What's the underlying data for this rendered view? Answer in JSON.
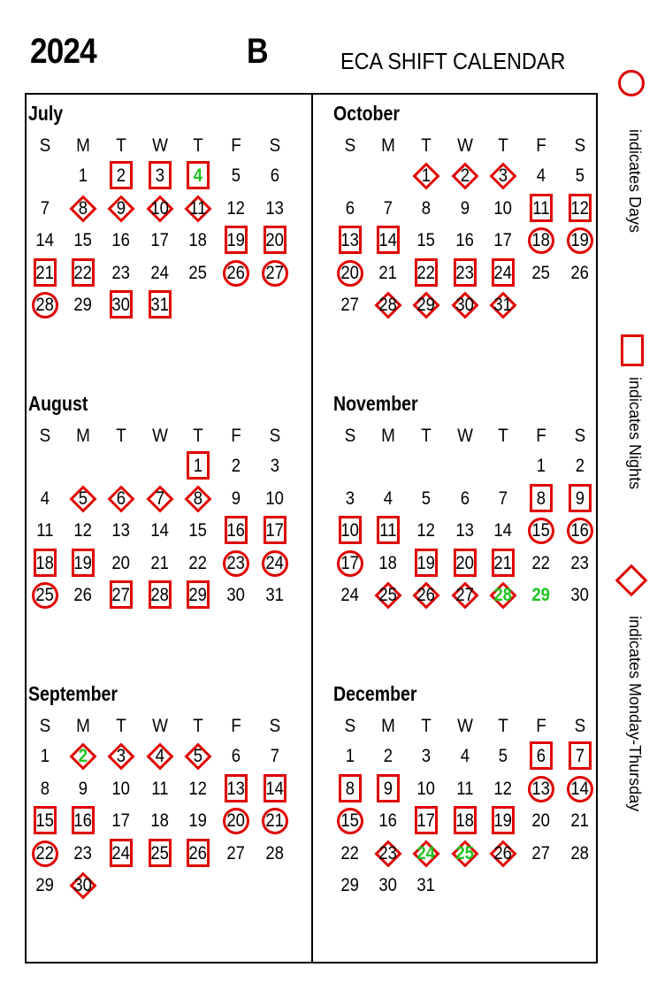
{
  "header": {
    "year": "2024",
    "shift": "B",
    "title": "ECA SHIFT CALENDAR"
  },
  "legend": {
    "days": "indicates Days",
    "nights": "indicates Nights",
    "monday_thursday": "indicates Monday-Thursday",
    "mark_color": "#e00000",
    "holiday_color": "#1fc21f"
  },
  "weekday_labels": [
    "S",
    "M",
    "T",
    "W",
    "T",
    "F",
    "S"
  ],
  "months": [
    {
      "name": "July",
      "start_weekday": 1,
      "days": 31,
      "marks": {
        "2": "square",
        "3": "square",
        "4": "square",
        "8": "diamond",
        "9": "diamond",
        "10": "diamond",
        "11": "diamond",
        "19": "square",
        "20": "square",
        "21": "square",
        "22": "square",
        "26": "circle",
        "27": "circle",
        "28": "circle",
        "30": "square",
        "31": "square"
      },
      "green": [
        4
      ]
    },
    {
      "name": "October",
      "start_weekday": 2,
      "days": 31,
      "marks": {
        "1": "diamond",
        "2": "diamond",
        "3": "diamond",
        "11": "square",
        "12": "square",
        "13": "square",
        "14": "square",
        "18": "circle",
        "19": "circle",
        "20": "circle",
        "22": "square",
        "23": "square",
        "24": "square",
        "28": "diamond",
        "29": "diamond",
        "30": "diamond",
        "31": "diamond"
      },
      "green": []
    },
    {
      "name": "August",
      "start_weekday": 4,
      "days": 31,
      "marks": {
        "1": "square",
        "5": "diamond",
        "6": "diamond",
        "7": "diamond",
        "8": "diamond",
        "16": "square",
        "17": "square",
        "18": "square",
        "19": "square",
        "23": "circle",
        "24": "circle",
        "25": "circle",
        "27": "square",
        "28": "square",
        "29": "square"
      },
      "green": []
    },
    {
      "name": "November",
      "start_weekday": 5,
      "days": 30,
      "marks": {
        "8": "square",
        "9": "square",
        "10": "square",
        "11": "square",
        "15": "circle",
        "16": "circle",
        "17": "circle",
        "19": "square",
        "20": "square",
        "21": "square",
        "25": "diamond",
        "26": "diamond",
        "27": "diamond",
        "28": "diamond"
      },
      "green": [
        28,
        29
      ]
    },
    {
      "name": "September",
      "start_weekday": 0,
      "days": 30,
      "marks": {
        "2": "diamond",
        "3": "diamond",
        "4": "diamond",
        "5": "diamond",
        "13": "square",
        "14": "square",
        "15": "square",
        "16": "square",
        "20": "circle",
        "21": "circle",
        "22": "circle",
        "24": "square",
        "25": "square",
        "26": "square",
        "30": "diamond"
      },
      "green": [
        2
      ]
    },
    {
      "name": "December",
      "start_weekday": 0,
      "days": 31,
      "marks": {
        "6": "square",
        "7": "square",
        "8": "square",
        "9": "square",
        "13": "circle",
        "14": "circle",
        "15": "circle",
        "17": "square",
        "18": "square",
        "19": "square",
        "23": "diamond",
        "24": "diamond",
        "25": "diamond",
        "26": "diamond"
      },
      "green": [
        24,
        25
      ]
    }
  ]
}
